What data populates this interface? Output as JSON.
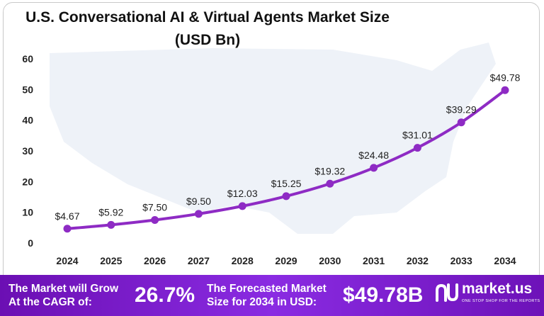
{
  "chart_data": {
    "type": "line",
    "title": "U.S. Conversational  AI & Virtual Agents Market Size",
    "subtitle": "(USD Bn)",
    "categories": [
      "2024",
      "2025",
      "2026",
      "2027",
      "2028",
      "2029",
      "2030",
      "2031",
      "2032",
      "2033",
      "2034"
    ],
    "values": [
      4.67,
      5.92,
      7.5,
      9.5,
      12.03,
      15.25,
      19.32,
      24.48,
      31.01,
      39.29,
      49.78
    ],
    "data_labels": [
      "$4.67",
      "$5.92",
      "$7.50",
      "$9.50",
      "$12.03",
      "$15.25",
      "$19.32",
      "$24.48",
      "$31.01",
      "$39.29",
      "$49.78"
    ],
    "y_ticks": [
      "0",
      "10",
      "20",
      "30",
      "40",
      "50",
      "60"
    ],
    "ylim": [
      0,
      60
    ],
    "line_color": "#8e2bc4",
    "grid": false,
    "legend": "none"
  },
  "footer": {
    "cagr_line1": "The Market will Grow",
    "cagr_line2": "At the CAGR of:",
    "cagr_value": "26.7%",
    "forecast_line1": "The Forecasted Market",
    "forecast_line2": "Size for 2034 in USD:",
    "forecast_value": "$49.78B",
    "brand_name": "market.us",
    "brand_tagline": "ONE STOP SHOP FOR THE REPORTS",
    "background_color": "#7a1fc7"
  }
}
